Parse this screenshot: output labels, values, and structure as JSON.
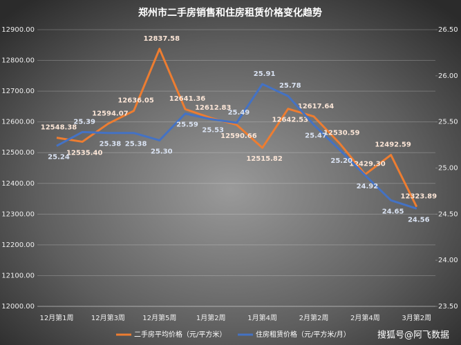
{
  "chart_data": {
    "type": "line",
    "title": "郑州市二手房销售和住房租赁价格变化趋势",
    "categories": [
      "12月第1周",
      null,
      "12月第3周",
      null,
      "12月第5周",
      null,
      "1月第2周",
      null,
      "1月第4周",
      null,
      "2月第2周",
      null,
      "2月第4周",
      null,
      "3月第2周"
    ],
    "series": [
      {
        "name": "二手房平均价格（元/平方米）",
        "color": "#ED7D31",
        "axis": "y",
        "values": [
          12548.38,
          12535.4,
          12594.07,
          12636.05,
          12837.58,
          12641.36,
          12612.83,
          12590.66,
          12515.82,
          12642.53,
          12617.64,
          12530.59,
          12429.3,
          12492.59,
          12323.89
        ],
        "value_labels": [
          "12548.38",
          "12535.40",
          "12594.07",
          "12636.05",
          "12837.58",
          "12641.36",
          "12612.83",
          "12590.66",
          "12515.82",
          "12642.53",
          "12617.64",
          "12530.59",
          "12429.30",
          "12492.59",
          "12323.89"
        ]
      },
      {
        "name": "住房租赁价格（元/平方米/月）",
        "color": "#4472C4",
        "axis": "y2",
        "values": [
          25.24,
          25.39,
          25.38,
          25.38,
          25.3,
          25.59,
          25.53,
          25.49,
          25.91,
          25.78,
          25.47,
          25.2,
          24.92,
          24.65,
          24.56
        ],
        "value_labels": [
          "25.24",
          "25.39",
          "25.38",
          "25.38",
          "25.30",
          "25.59",
          "25.53",
          "25.49",
          "25.91",
          "25.78",
          "25.47",
          "25.20",
          "24.92",
          "24.65",
          "24.56"
        ]
      }
    ],
    "ylim": [
      12000,
      12900
    ],
    "yticks": [
      {
        "value": 12000,
        "label": "12000.00"
      },
      {
        "value": 12100,
        "label": "12100.00"
      },
      {
        "value": 12200,
        "label": "12200.00"
      },
      {
        "value": 12300,
        "label": "12300.00"
      },
      {
        "value": 12400,
        "label": "12400.00"
      },
      {
        "value": 12500,
        "label": "12500.00"
      },
      {
        "value": 12600,
        "label": "12600.00"
      },
      {
        "value": 12700,
        "label": "12700.00"
      },
      {
        "value": 12800,
        "label": "12800.00"
      },
      {
        "value": 12900,
        "label": "12900.00"
      }
    ],
    "y2lim": [
      23.5,
      26.5
    ],
    "y2ticks": [
      {
        "value": 23.5,
        "label": "23.50"
      },
      {
        "value": 24,
        "label": "24.00"
      },
      {
        "value": 24.5,
        "label": "24.50"
      },
      {
        "value": 25,
        "label": "25.00"
      },
      {
        "value": 25.5,
        "label": "25.50"
      },
      {
        "value": 26,
        "label": "26.00"
      },
      {
        "value": 26.5,
        "label": "26.50"
      }
    ],
    "grid": true,
    "legend": "bottom",
    "watermark": "搜狐号@阿飞数据"
  }
}
